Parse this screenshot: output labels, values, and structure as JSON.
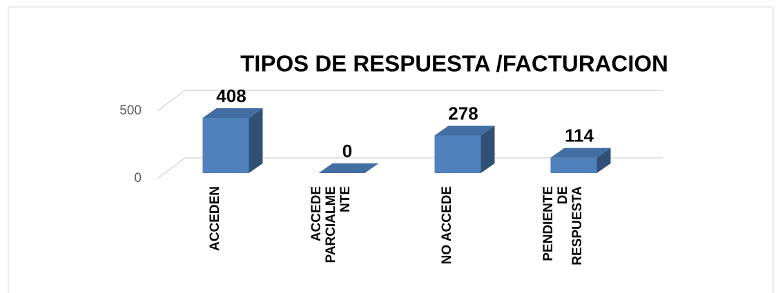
{
  "chart_data": {
    "type": "bar3d",
    "title": "TIPOS DE RESPUESTA /FACTURACION",
    "categories": [
      "ACCEDEN",
      "ACCEDE\nPARCIALME\nNTE",
      "NO ACCEDE",
      "PENDIENTE\nDE\nRESPUESTA"
    ],
    "values": [
      408,
      0,
      278,
      114
    ],
    "color": "#4f81bd",
    "ylim": [
      0,
      500
    ],
    "yticks": [
      0,
      500
    ],
    "grid": true
  }
}
